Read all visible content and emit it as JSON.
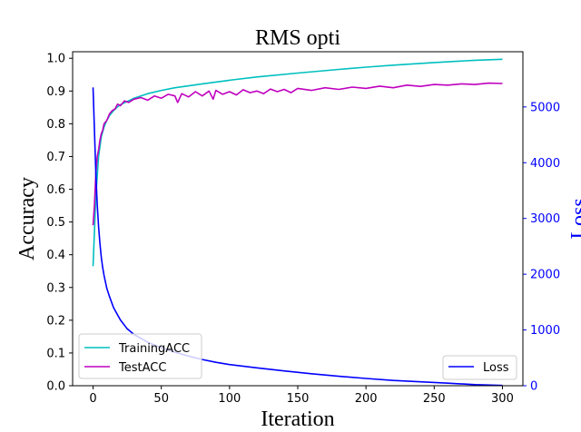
{
  "chart_data": {
    "type": "line",
    "title": "RMS opti",
    "xlabel": "Iteration",
    "ylabel_left": "Accuracy",
    "ylabel_right": "Loss",
    "xlim": [
      -15,
      315
    ],
    "ylim_left": [
      0.0,
      1.02
    ],
    "ylim_right": [
      0,
      5990
    ],
    "x_ticks": [
      "0",
      "50",
      "100",
      "150",
      "200",
      "250",
      "300"
    ],
    "y_ticks_left": [
      "0.0",
      "0.1",
      "0.2",
      "0.3",
      "0.4",
      "0.5",
      "0.6",
      "0.7",
      "0.8",
      "0.9",
      "1.0"
    ],
    "y_ticks_right": [
      "0",
      "1000",
      "2000",
      "3000",
      "4000",
      "5000"
    ],
    "grid": false,
    "colors": {
      "training": "#00bfbf",
      "test": "#bf00bf",
      "loss": "#0000ff",
      "right_axis": "#0000ff"
    },
    "legend_left": {
      "placement": "lower-left",
      "entries": [
        "TrainingACC",
        "TestACC"
      ]
    },
    "legend_right": {
      "placement": "lower-right",
      "entries": [
        "Loss"
      ]
    },
    "series": [
      {
        "name": "TrainingACC",
        "axis": "left",
        "x": [
          0,
          2,
          4,
          6,
          8,
          10,
          12,
          15,
          18,
          20,
          25,
          30,
          40,
          50,
          60,
          80,
          100,
          120,
          150,
          180,
          200,
          220,
          250,
          280,
          300
        ],
        "values": [
          0.365,
          0.58,
          0.7,
          0.76,
          0.79,
          0.81,
          0.825,
          0.84,
          0.852,
          0.858,
          0.868,
          0.878,
          0.892,
          0.902,
          0.91,
          0.922,
          0.933,
          0.943,
          0.955,
          0.966,
          0.973,
          0.979,
          0.987,
          0.994,
          0.997
        ]
      },
      {
        "name": "TestACC",
        "axis": "left",
        "x": [
          0,
          1,
          2,
          3,
          4,
          5,
          6,
          7,
          8,
          10,
          12,
          14,
          16,
          18,
          20,
          23,
          26,
          30,
          35,
          40,
          45,
          50,
          55,
          60,
          62,
          65,
          70,
          75,
          80,
          85,
          88,
          90,
          95,
          100,
          105,
          110,
          115,
          120,
          125,
          130,
          135,
          140,
          145,
          150,
          160,
          170,
          180,
          190,
          200,
          210,
          220,
          230,
          240,
          250,
          260,
          270,
          280,
          290,
          300
        ],
        "values": [
          0.49,
          0.55,
          0.65,
          0.7,
          0.72,
          0.75,
          0.77,
          0.78,
          0.8,
          0.81,
          0.83,
          0.84,
          0.845,
          0.86,
          0.855,
          0.87,
          0.865,
          0.875,
          0.88,
          0.872,
          0.885,
          0.878,
          0.89,
          0.885,
          0.865,
          0.892,
          0.882,
          0.898,
          0.885,
          0.9,
          0.875,
          0.902,
          0.89,
          0.898,
          0.888,
          0.904,
          0.895,
          0.9,
          0.892,
          0.906,
          0.898,
          0.905,
          0.895,
          0.908,
          0.902,
          0.91,
          0.905,
          0.912,
          0.908,
          0.915,
          0.91,
          0.918,
          0.914,
          0.92,
          0.918,
          0.922,
          0.92,
          0.924,
          0.923
        ]
      },
      {
        "name": "Loss",
        "axis": "right",
        "x": [
          0,
          1,
          2,
          3,
          4,
          5,
          6,
          7,
          8,
          10,
          12,
          15,
          20,
          25,
          30,
          40,
          50,
          60,
          70,
          80,
          90,
          100,
          120,
          140,
          160,
          180,
          200,
          220,
          240,
          260,
          280,
          300
        ],
        "values": [
          5350,
          4600,
          3800,
          3250,
          2850,
          2550,
          2300,
          2120,
          1980,
          1750,
          1600,
          1400,
          1180,
          1020,
          920,
          780,
          680,
          600,
          530,
          470,
          420,
          380,
          320,
          265,
          215,
          170,
          130,
          95,
          70,
          45,
          20,
          5
        ]
      }
    ]
  }
}
